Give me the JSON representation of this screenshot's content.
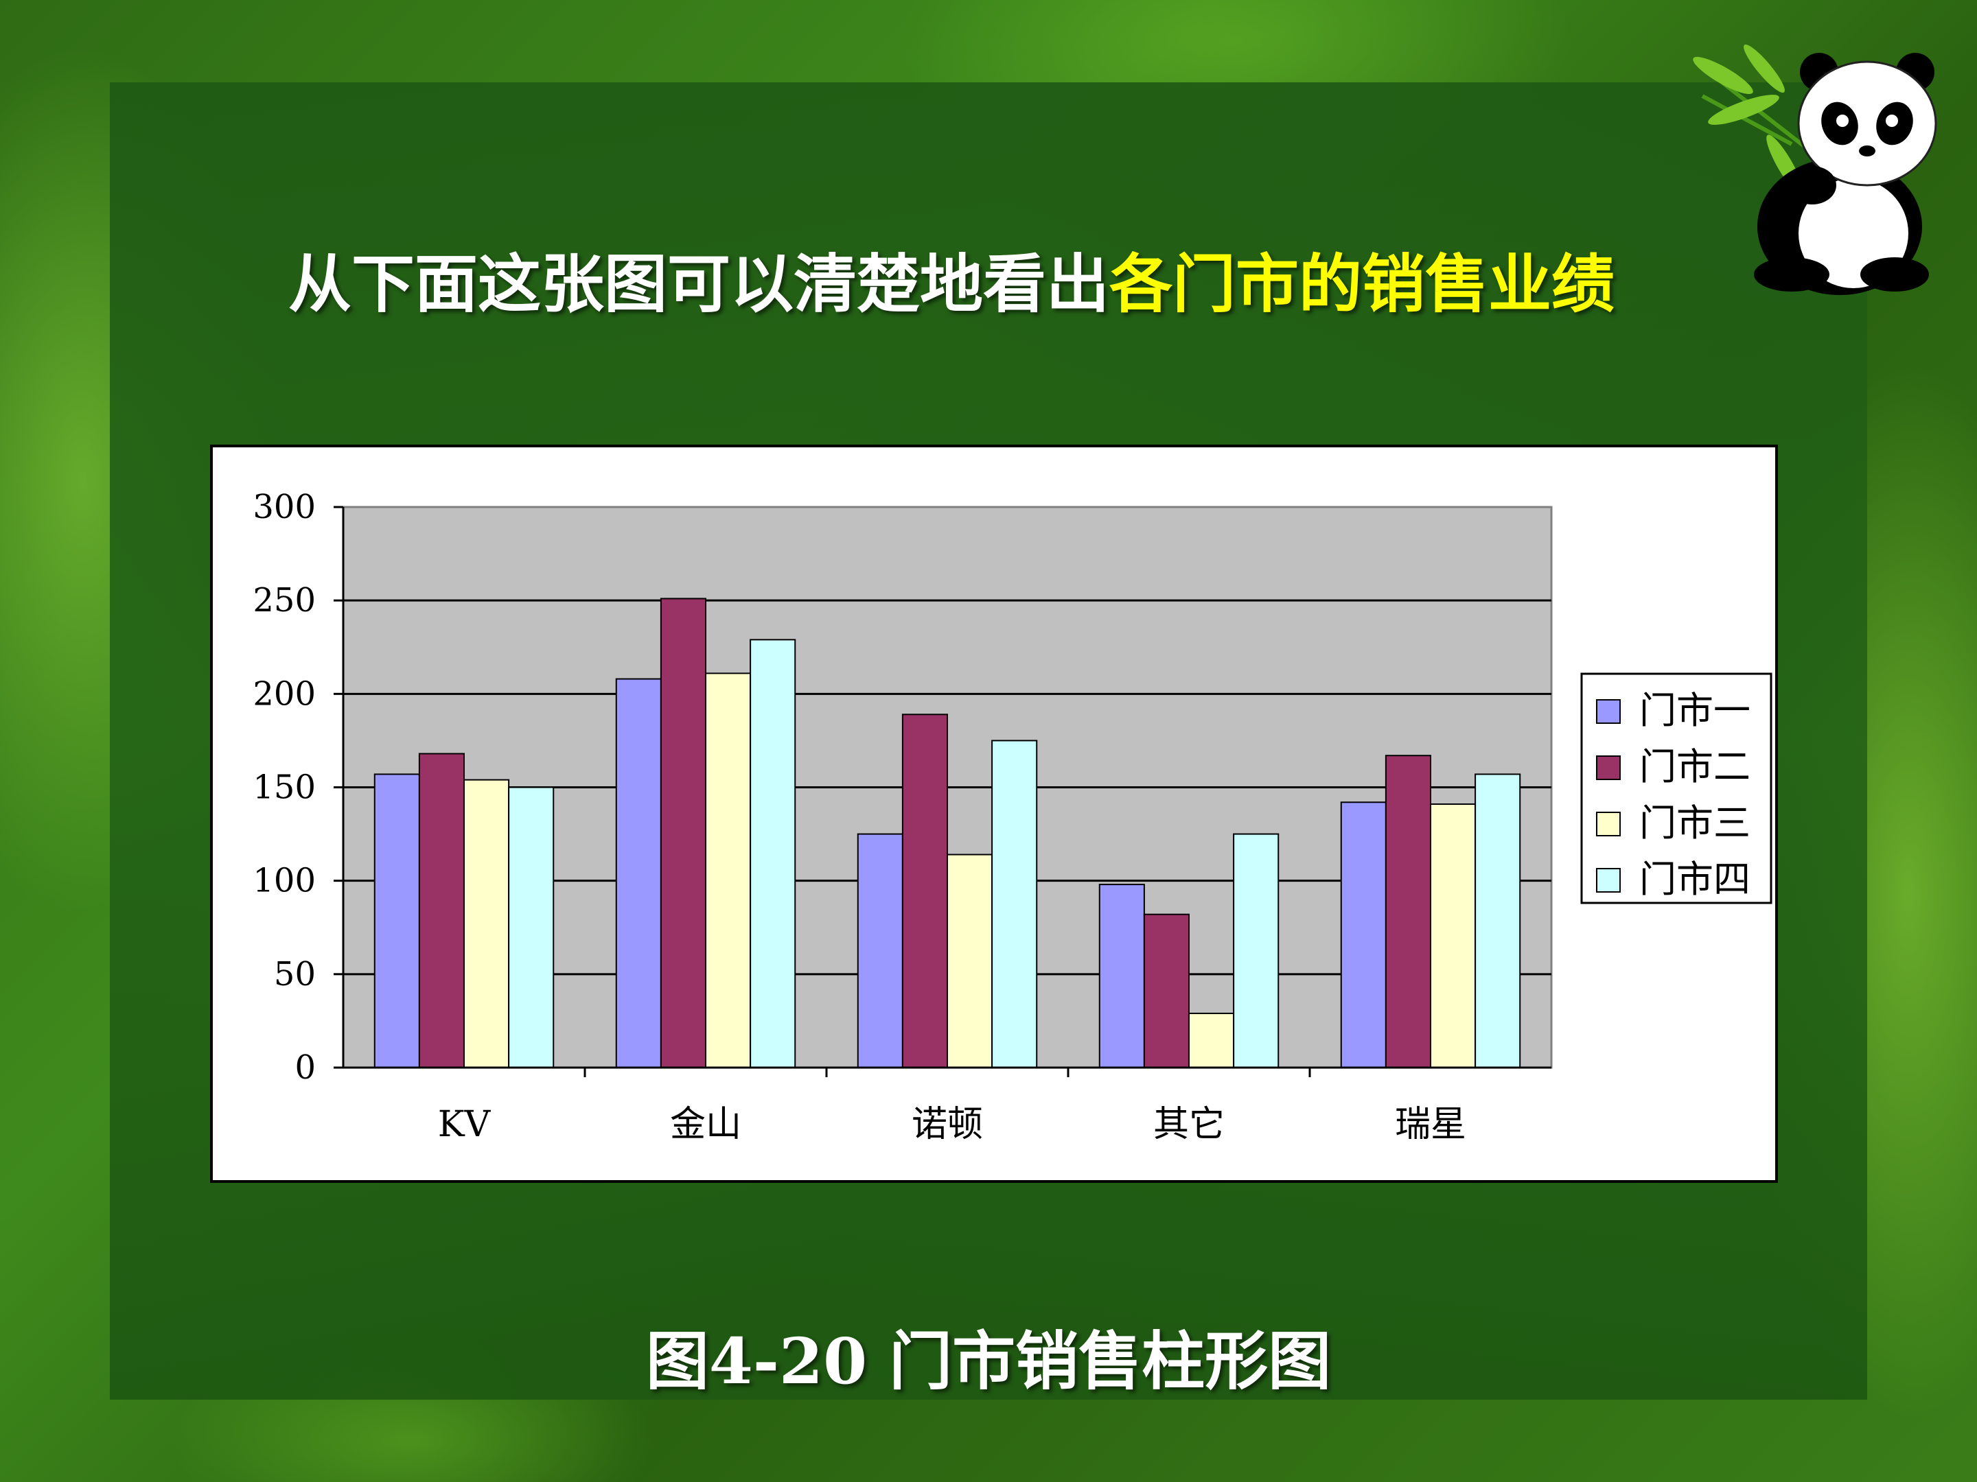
{
  "slide": {
    "title_prefix": "从下面这张图可以清楚地看出",
    "title_highlight": "各门市的销售业绩",
    "caption": "图4-20  门市销售柱形图"
  },
  "colors": {
    "highlight": "#ffff00",
    "plot_bg": "#c0c0c0"
  },
  "decoration": {
    "icon": "panda-bamboo-icon"
  },
  "chart_data": {
    "type": "bar",
    "categories": [
      "KV",
      "金山",
      "诺顿",
      "其它",
      "瑞星"
    ],
    "series": [
      {
        "name": "门市一",
        "color": "#9999ff",
        "values": [
          157,
          208,
          125,
          98,
          142
        ]
      },
      {
        "name": "门市二",
        "color": "#993366",
        "values": [
          168,
          251,
          189,
          82,
          167
        ]
      },
      {
        "name": "门市三",
        "color": "#ffffcc",
        "values": [
          154,
          211,
          114,
          29,
          141
        ]
      },
      {
        "name": "门市四",
        "color": "#ccffff",
        "values": [
          150,
          229,
          175,
          125,
          157
        ]
      }
    ],
    "yticks": [
      "0",
      "50",
      "100",
      "150",
      "200",
      "250",
      "300"
    ],
    "ylim": [
      0,
      300
    ],
    "grid": true,
    "legend": "right"
  }
}
